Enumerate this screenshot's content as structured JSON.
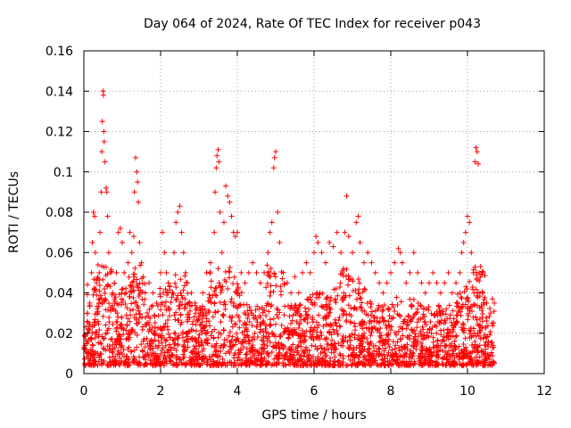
{
  "chart_data": {
    "type": "scatter",
    "title": "Day 064 of 2024, Rate Of TEC Index for receiver p043",
    "xlabel": "GPS time / hours",
    "ylabel": "ROTI / TECUs",
    "xlim": [
      0,
      12
    ],
    "ylim": [
      0,
      0.16
    ],
    "xticks": [
      0,
      2,
      4,
      6,
      8,
      10,
      12
    ],
    "yticks": [
      0,
      0.02,
      0.04,
      0.06,
      0.08,
      0.1,
      0.12,
      0.14,
      0.16
    ],
    "xtick_labels": [
      "0",
      "2",
      "4",
      "6",
      "8",
      "10",
      "12"
    ],
    "ytick_labels": [
      "0",
      "0.02",
      "0.04",
      "0.06",
      "0.08",
      "0.1",
      "0.12",
      "0.14",
      "0.16"
    ],
    "grid": true,
    "marker": "plus",
    "color": "#ff0000",
    "x_extent": [
      0,
      10.7
    ],
    "series": [
      {
        "name": "p043",
        "points": [
          [
            0.05,
            0.012
          ],
          [
            0.1,
            0.02
          ],
          [
            0.15,
            0.035
          ],
          [
            0.2,
            0.05
          ],
          [
            0.22,
            0.065
          ],
          [
            0.25,
            0.08
          ],
          [
            0.28,
            0.078
          ],
          [
            0.3,
            0.06
          ],
          [
            0.33,
            0.045
          ],
          [
            0.35,
            0.03
          ],
          [
            0.4,
            0.05
          ],
          [
            0.42,
            0.07
          ],
          [
            0.45,
            0.09
          ],
          [
            0.47,
            0.11
          ],
          [
            0.48,
            0.125
          ],
          [
            0.5,
            0.14
          ],
          [
            0.51,
            0.138
          ],
          [
            0.52,
            0.12
          ],
          [
            0.53,
            0.115
          ],
          [
            0.55,
            0.105
          ],
          [
            0.58,
            0.092
          ],
          [
            0.6,
            0.09
          ],
          [
            0.62,
            0.078
          ],
          [
            0.65,
            0.06
          ],
          [
            0.7,
            0.05
          ],
          [
            0.75,
            0.04
          ],
          [
            0.8,
            0.035
          ],
          [
            0.85,
            0.05
          ],
          [
            0.9,
            0.07
          ],
          [
            0.95,
            0.072
          ],
          [
            1.0,
            0.065
          ],
          [
            1.05,
            0.05
          ],
          [
            1.1,
            0.04
          ],
          [
            1.15,
            0.055
          ],
          [
            1.2,
            0.07
          ],
          [
            1.25,
            0.06
          ],
          [
            1.3,
            0.068
          ],
          [
            1.32,
            0.09
          ],
          [
            1.35,
            0.107
          ],
          [
            1.38,
            0.1
          ],
          [
            1.4,
            0.095
          ],
          [
            1.42,
            0.085
          ],
          [
            1.45,
            0.065
          ],
          [
            1.5,
            0.055
          ],
          [
            1.55,
            0.048
          ],
          [
            1.6,
            0.04
          ],
          [
            1.7,
            0.045
          ],
          [
            1.8,
            0.04
          ],
          [
            1.9,
            0.035
          ],
          [
            2.0,
            0.05
          ],
          [
            2.05,
            0.07
          ],
          [
            2.1,
            0.06
          ],
          [
            2.15,
            0.05
          ],
          [
            2.2,
            0.045
          ],
          [
            2.3,
            0.04
          ],
          [
            2.35,
            0.06
          ],
          [
            2.4,
            0.075
          ],
          [
            2.45,
            0.08
          ],
          [
            2.5,
            0.083
          ],
          [
            2.55,
            0.07
          ],
          [
            2.6,
            0.06
          ],
          [
            2.65,
            0.05
          ],
          [
            2.7,
            0.045
          ],
          [
            2.8,
            0.04
          ],
          [
            2.9,
            0.035
          ],
          [
            3.0,
            0.03
          ],
          [
            3.1,
            0.04
          ],
          [
            3.2,
            0.05
          ],
          [
            3.3,
            0.055
          ],
          [
            3.4,
            0.07
          ],
          [
            3.42,
            0.09
          ],
          [
            3.45,
            0.102
          ],
          [
            3.47,
            0.108
          ],
          [
            3.5,
            0.111
          ],
          [
            3.52,
            0.105
          ],
          [
            3.55,
            0.08
          ],
          [
            3.6,
            0.06
          ],
          [
            3.65,
            0.075
          ],
          [
            3.7,
            0.093
          ],
          [
            3.75,
            0.088
          ],
          [
            3.8,
            0.085
          ],
          [
            3.85,
            0.078
          ],
          [
            3.9,
            0.07
          ],
          [
            3.95,
            0.068
          ],
          [
            4.0,
            0.07
          ],
          [
            4.1,
            0.05
          ],
          [
            4.2,
            0.045
          ],
          [
            4.3,
            0.05
          ],
          [
            4.4,
            0.055
          ],
          [
            4.5,
            0.05
          ],
          [
            4.6,
            0.045
          ],
          [
            4.7,
            0.05
          ],
          [
            4.8,
            0.06
          ],
          [
            4.85,
            0.07
          ],
          [
            4.9,
            0.075
          ],
          [
            4.95,
            0.102
          ],
          [
            4.97,
            0.107
          ],
          [
            5.0,
            0.11
          ],
          [
            5.05,
            0.08
          ],
          [
            5.1,
            0.065
          ],
          [
            5.2,
            0.05
          ],
          [
            5.3,
            0.045
          ],
          [
            5.4,
            0.04
          ],
          [
            5.5,
            0.048
          ],
          [
            5.6,
            0.04
          ],
          [
            5.7,
            0.05
          ],
          [
            5.8,
            0.055
          ],
          [
            5.9,
            0.05
          ],
          [
            6.0,
            0.06
          ],
          [
            6.05,
            0.068
          ],
          [
            6.1,
            0.065
          ],
          [
            6.2,
            0.06
          ],
          [
            6.3,
            0.055
          ],
          [
            6.4,
            0.065
          ],
          [
            6.5,
            0.063
          ],
          [
            6.6,
            0.07
          ],
          [
            6.7,
            0.06
          ],
          [
            6.8,
            0.07
          ],
          [
            6.85,
            0.088
          ],
          [
            6.9,
            0.068
          ],
          [
            7.0,
            0.06
          ],
          [
            7.1,
            0.075
          ],
          [
            7.15,
            0.078
          ],
          [
            7.2,
            0.065
          ],
          [
            7.3,
            0.055
          ],
          [
            7.4,
            0.06
          ],
          [
            7.5,
            0.055
          ],
          [
            7.6,
            0.05
          ],
          [
            7.7,
            0.045
          ],
          [
            7.8,
            0.04
          ],
          [
            7.9,
            0.045
          ],
          [
            8.0,
            0.05
          ],
          [
            8.1,
            0.055
          ],
          [
            8.2,
            0.062
          ],
          [
            8.25,
            0.06
          ],
          [
            8.3,
            0.055
          ],
          [
            8.4,
            0.045
          ],
          [
            8.5,
            0.05
          ],
          [
            8.6,
            0.06
          ],
          [
            8.7,
            0.05
          ],
          [
            8.8,
            0.045
          ],
          [
            8.9,
            0.04
          ],
          [
            9.0,
            0.045
          ],
          [
            9.1,
            0.05
          ],
          [
            9.2,
            0.045
          ],
          [
            9.3,
            0.04
          ],
          [
            9.4,
            0.045
          ],
          [
            9.5,
            0.05
          ],
          [
            9.6,
            0.04
          ],
          [
            9.7,
            0.045
          ],
          [
            9.8,
            0.05
          ],
          [
            9.85,
            0.06
          ],
          [
            9.9,
            0.065
          ],
          [
            9.95,
            0.07
          ],
          [
            10.0,
            0.078
          ],
          [
            10.05,
            0.075
          ],
          [
            10.1,
            0.06
          ],
          [
            10.15,
            0.05
          ],
          [
            10.2,
            0.105
          ],
          [
            10.22,
            0.112
          ],
          [
            10.25,
            0.11
          ],
          [
            10.28,
            0.104
          ],
          [
            10.3,
            0.05
          ],
          [
            10.4,
            0.04
          ],
          [
            10.5,
            0.035
          ],
          [
            10.6,
            0.03
          ],
          [
            10.65,
            0.037
          ],
          [
            10.7,
            0.035
          ]
        ]
      }
    ]
  }
}
